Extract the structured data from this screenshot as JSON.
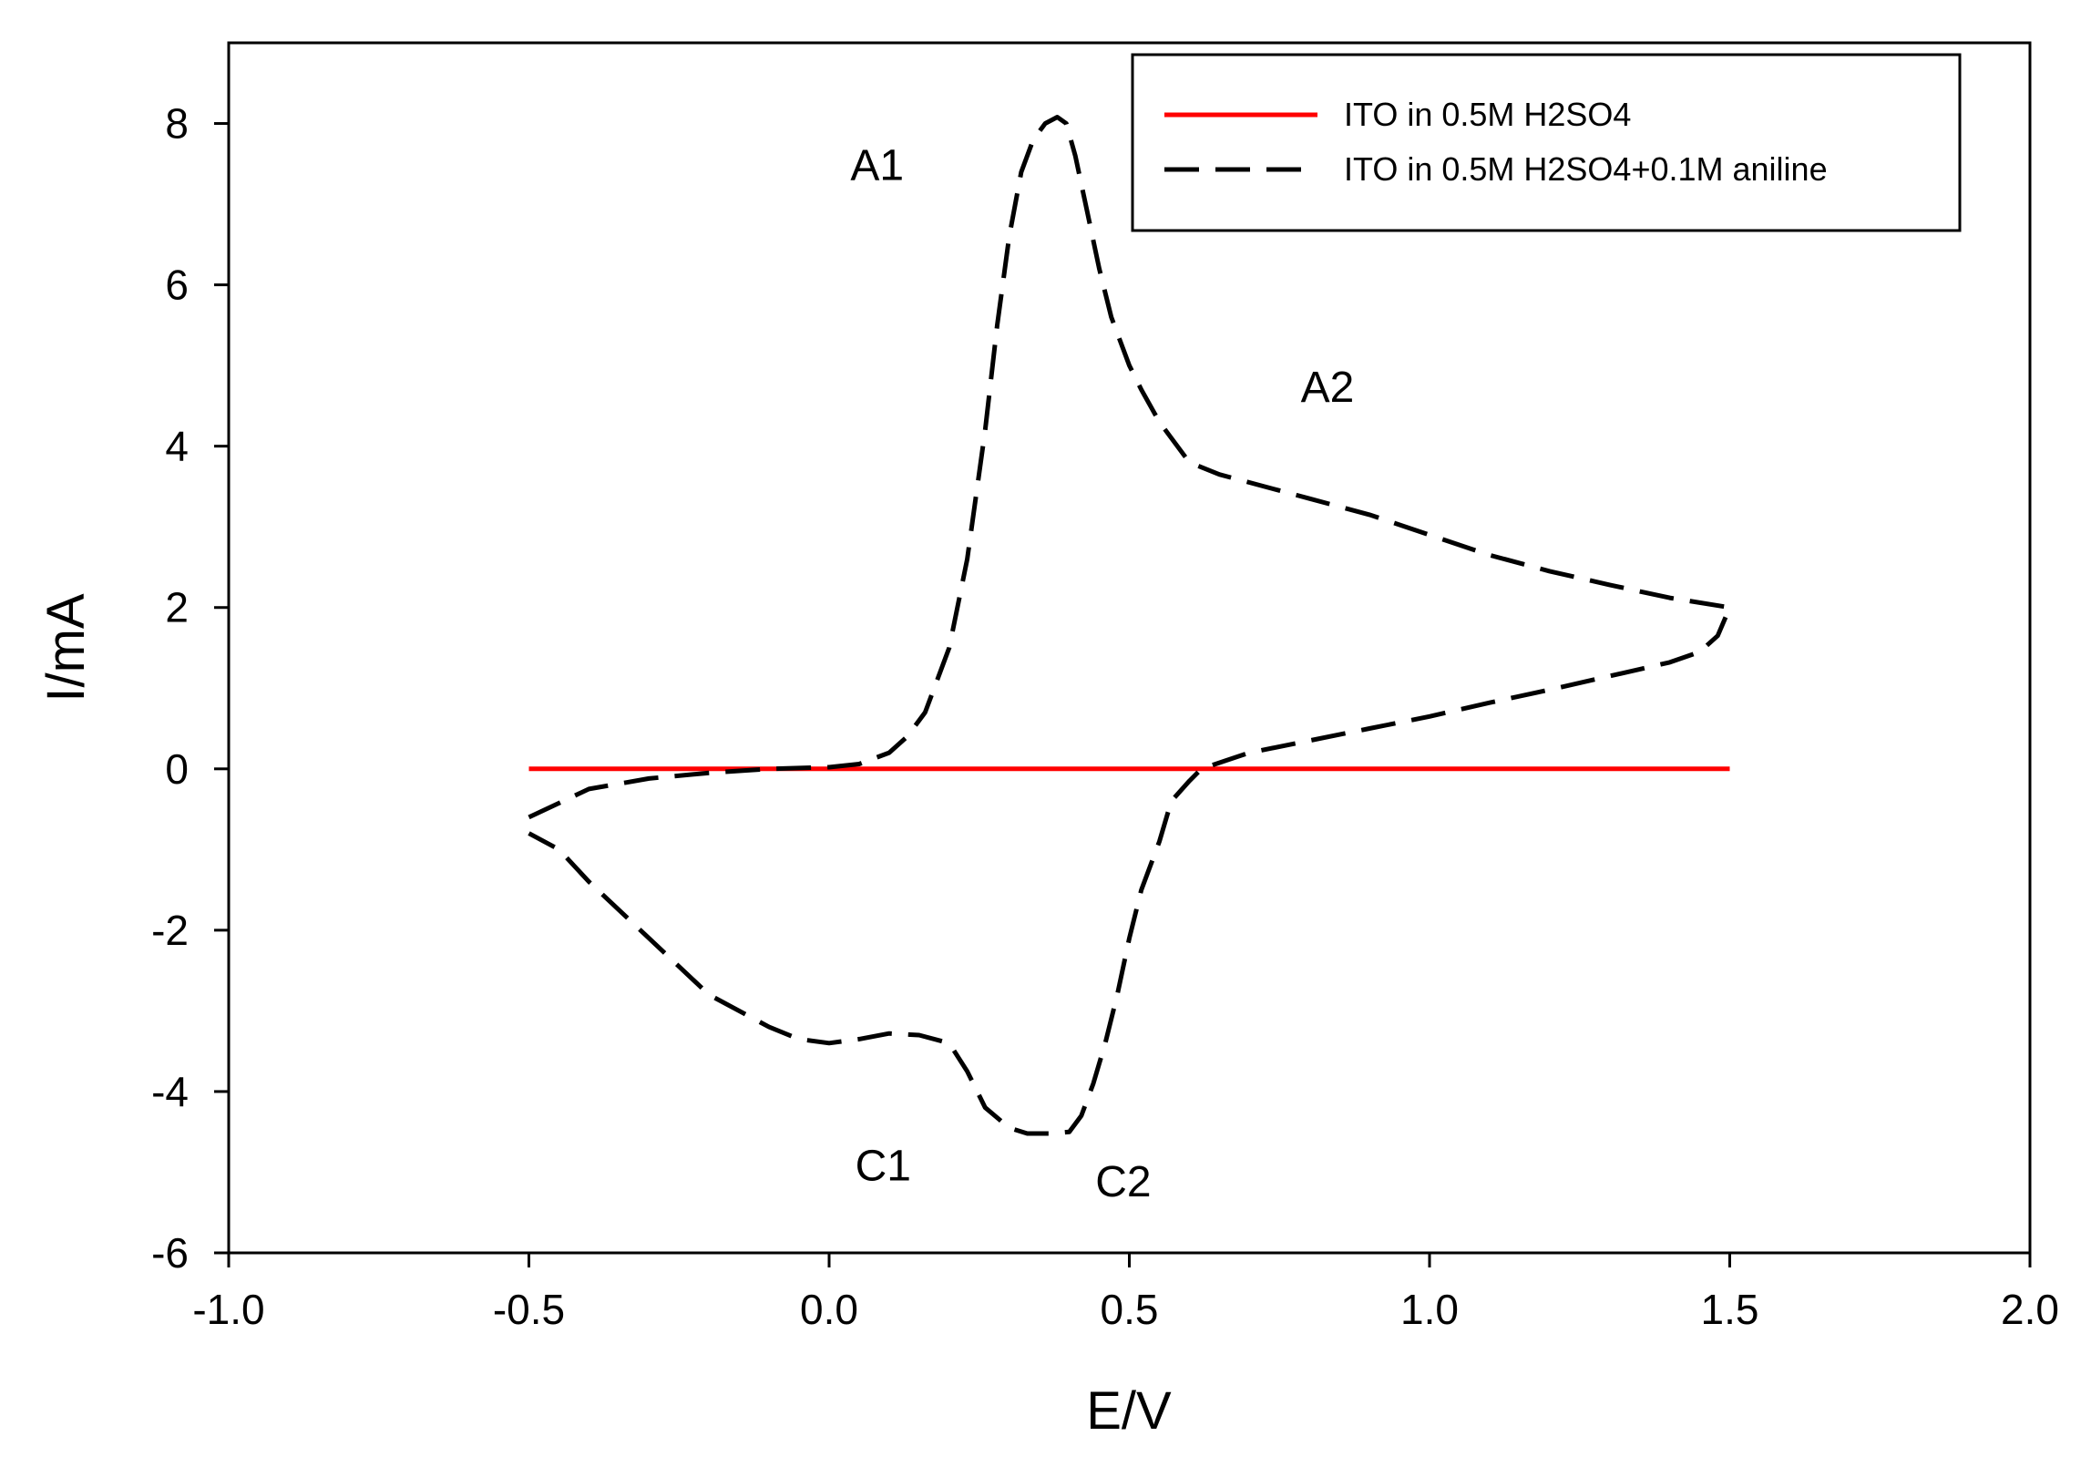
{
  "chart_data": {
    "type": "line",
    "xlabel": "E/V",
    "ylabel": "I/mA",
    "xlim": [
      -1.0,
      2.0
    ],
    "ylim": [
      -6,
      9
    ],
    "x_ticks": [
      -1.0,
      -0.5,
      0.0,
      0.5,
      1.0,
      1.5,
      2.0
    ],
    "x_tick_labels": [
      "-1.0",
      "-0.5",
      "0.0",
      "0.5",
      "1.0",
      "1.5",
      "2.0"
    ],
    "y_ticks": [
      -6,
      -4,
      -2,
      0,
      2,
      4,
      6,
      8
    ],
    "y_tick_labels": [
      "-6",
      "-4",
      "-2",
      "0",
      "2",
      "4",
      "6",
      "8"
    ],
    "grid": false,
    "legend_position": "top-right",
    "series": [
      {
        "name": "ITO in 0.5M H2SO4",
        "color": "#ff0000",
        "style": "solid",
        "x": [
          -0.5,
          1.5
        ],
        "y": [
          0,
          0
        ]
      },
      {
        "name": "ITO in 0.5M H2SO4+0.1M aniline",
        "color": "#000000",
        "style": "dashed",
        "x": [
          -0.5,
          -0.4,
          -0.3,
          -0.2,
          -0.1,
          0.0,
          0.05,
          0.1,
          0.13,
          0.16,
          0.2,
          0.23,
          0.26,
          0.28,
          0.3,
          0.32,
          0.34,
          0.36,
          0.38,
          0.395,
          0.41,
          0.43,
          0.45,
          0.47,
          0.49,
          0.5,
          0.52,
          0.55,
          0.6,
          0.65,
          0.7,
          0.8,
          0.9,
          1.0,
          1.1,
          1.2,
          1.3,
          1.4,
          1.5,
          1.48,
          1.45,
          1.4,
          1.3,
          1.2,
          1.1,
          1.0,
          0.9,
          0.8,
          0.7,
          0.66,
          0.62,
          0.6,
          0.57,
          0.55,
          0.52,
          0.5,
          0.48,
          0.46,
          0.44,
          0.42,
          0.4,
          0.37,
          0.33,
          0.3,
          0.26,
          0.23,
          0.2,
          0.15,
          0.1,
          0.05,
          0.0,
          -0.05,
          -0.1,
          -0.2,
          -0.3,
          -0.4,
          -0.45,
          -0.5
        ],
        "y": [
          -0.6,
          -0.25,
          -0.12,
          -0.05,
          0.0,
          0.02,
          0.06,
          0.2,
          0.4,
          0.7,
          1.5,
          2.6,
          4.2,
          5.5,
          6.6,
          7.4,
          7.8,
          8.0,
          8.08,
          8.0,
          7.6,
          6.9,
          6.2,
          5.6,
          5.2,
          5.0,
          4.7,
          4.3,
          3.8,
          3.65,
          3.55,
          3.35,
          3.15,
          2.9,
          2.65,
          2.45,
          2.28,
          2.12,
          2.0,
          1.65,
          1.45,
          1.32,
          1.15,
          0.98,
          0.82,
          0.65,
          0.5,
          0.35,
          0.2,
          0.1,
          0.0,
          -0.15,
          -0.4,
          -0.9,
          -1.5,
          -2.1,
          -2.8,
          -3.4,
          -3.9,
          -4.3,
          -4.5,
          -4.52,
          -4.52,
          -4.45,
          -4.2,
          -3.75,
          -3.4,
          -3.3,
          -3.28,
          -3.35,
          -3.4,
          -3.35,
          -3.2,
          -2.8,
          -2.1,
          -1.4,
          -1.0,
          -0.8
        ]
      }
    ],
    "annotations": [
      {
        "text": "A1",
        "x": 0.08,
        "y": 7.3
      },
      {
        "text": "A2",
        "x": 0.83,
        "y": 4.55
      },
      {
        "text": "C1",
        "x": 0.09,
        "y": -5.1
      },
      {
        "text": "C2",
        "x": 0.49,
        "y": -5.3
      }
    ]
  }
}
